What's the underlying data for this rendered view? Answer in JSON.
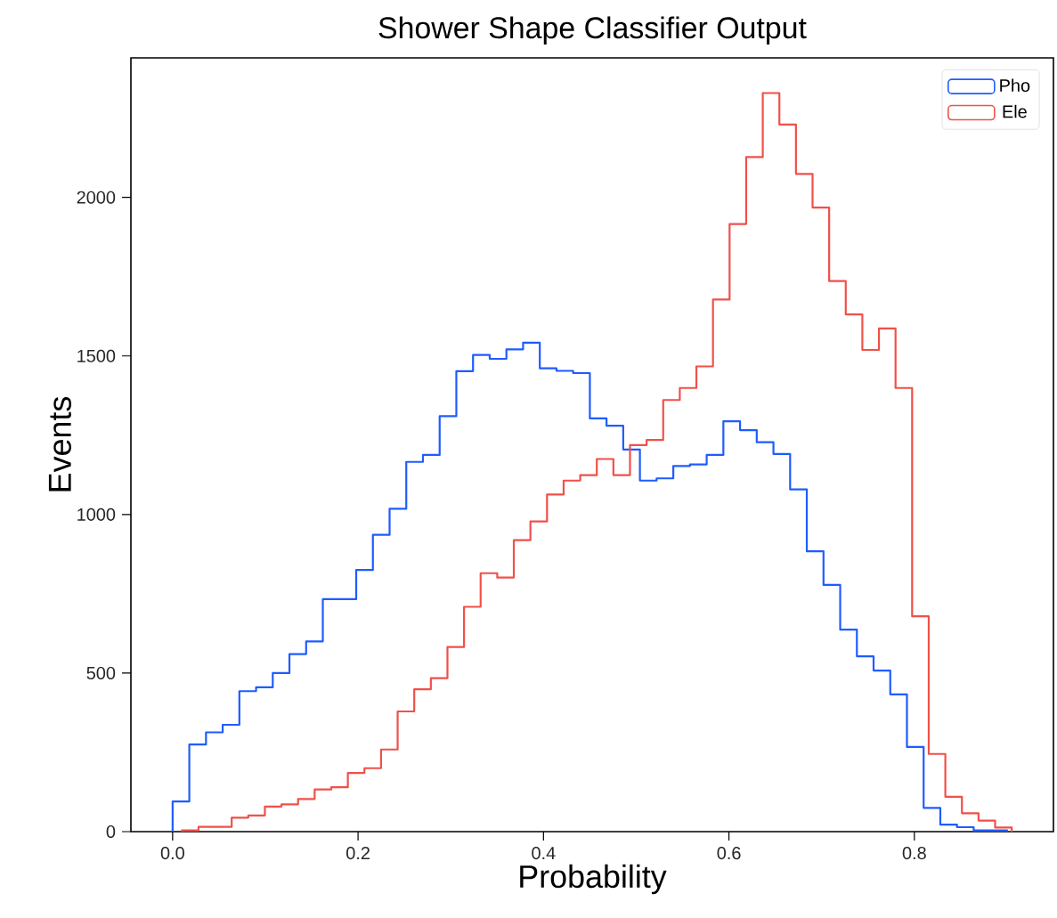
{
  "chart_data": {
    "type": "histogram",
    "title": "Shower Shape Classifier Output",
    "xlabel": "Probability",
    "ylabel": "Events",
    "xlim": [
      -0.045,
      0.95
    ],
    "ylim": [
      0,
      2440
    ],
    "xticks": [
      {
        "value": 0,
        "label": "0.0"
      },
      {
        "value": 0.2,
        "label": "0.2"
      },
      {
        "value": 0.4,
        "label": "0.4"
      },
      {
        "value": 0.6,
        "label": "0.6"
      },
      {
        "value": 0.8,
        "label": "0.8"
      }
    ],
    "yticks": [
      0,
      500,
      1000,
      1500,
      2000
    ],
    "legend": "top right",
    "bins": [
      0,
      0.018,
      0.036,
      0.054,
      0.072,
      0.09,
      0.108,
      0.126,
      0.144,
      0.162,
      0.18,
      0.198,
      0.216,
      0.234,
      0.252,
      0.27,
      0.288,
      0.306,
      0.324,
      0.342,
      0.36,
      0.378,
      0.396,
      0.414,
      0.432,
      0.45,
      0.468,
      0.486,
      0.504,
      0.522,
      0.54,
      0.558,
      0.576,
      0.594,
      0.612,
      0.63,
      0.648,
      0.666,
      0.684,
      0.702,
      0.72,
      0.738,
      0.756,
      0.774,
      0.792,
      0.81,
      0.828,
      0.846,
      0.864,
      0.882,
      0.9
    ],
    "series": [
      {
        "name": "Pho",
        "color": "#1f5cff",
        "values": [
          95,
          275,
          313,
          337,
          443,
          455,
          500,
          560,
          600,
          733,
          733,
          825,
          936,
          1018,
          1166,
          1188,
          1310,
          1452,
          1503,
          1491,
          1521,
          1542,
          1461,
          1453,
          1446,
          1303,
          1280,
          1205,
          1107,
          1114,
          1153,
          1158,
          1188,
          1294,
          1266,
          1228,
          1191,
          1079,
          884,
          778,
          637,
          553,
          508,
          433,
          267,
          75,
          22,
          14,
          4,
          4
        ]
      },
      {
        "name": "Ele",
        "color": "#f0504a",
        "bins": [
          0.01,
          0.0279,
          0.0458,
          0.0637,
          0.0816,
          0.0995,
          0.1174,
          0.1353,
          0.1532,
          0.1711,
          0.189,
          0.2069,
          0.2248,
          0.2427,
          0.2606,
          0.2785,
          0.2964,
          0.3143,
          0.3322,
          0.3501,
          0.368,
          0.3859,
          0.4038,
          0.4217,
          0.4396,
          0.4575,
          0.4754,
          0.4933,
          0.5112,
          0.5291,
          0.547,
          0.5649,
          0.5828,
          0.6007,
          0.6186,
          0.6365,
          0.6544,
          0.6723,
          0.6902,
          0.7081,
          0.726,
          0.7439,
          0.7618,
          0.7797,
          0.7976,
          0.8155,
          0.8334,
          0.8513,
          0.8692,
          0.8871,
          0.905
        ],
        "values": [
          4,
          15,
          15,
          44,
          51,
          79,
          86,
          103,
          133,
          140,
          185,
          200,
          259,
          379,
          449,
          484,
          582,
          709,
          815,
          801,
          919,
          978,
          1063,
          1107,
          1124,
          1175,
          1124,
          1219,
          1235,
          1361,
          1399,
          1467,
          1678,
          1916,
          2127,
          2329,
          2230,
          2074,
          1968,
          1736,
          1631,
          1519,
          1587,
          1399,
          679,
          245,
          110,
          58,
          35,
          13
        ]
      }
    ]
  }
}
